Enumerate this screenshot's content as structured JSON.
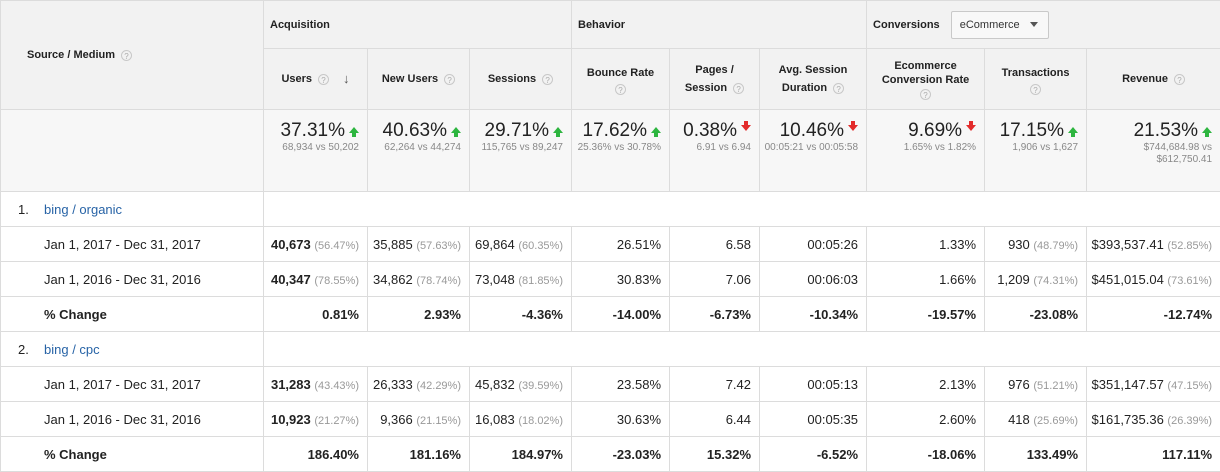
{
  "header": {
    "source_medium": "Source / Medium",
    "groups": {
      "acquisition": "Acquisition",
      "behavior": "Behavior",
      "conversions": "Conversions"
    },
    "conversion_select": "eCommerce",
    "columns": {
      "users": "Users",
      "new_users": "New Users",
      "sessions": "Sessions",
      "bounce_rate": "Bounce Rate",
      "pages_session_1": "Pages /",
      "pages_session_2": "Session",
      "avg_dur_1": "Avg. Session",
      "avg_dur_2": "Duration",
      "ecom_1": "Ecommerce",
      "ecom_2": "Conversion Rate",
      "transactions": "Transactions",
      "revenue": "Revenue"
    },
    "help_glyph": "?",
    "sort_glyph": "↓"
  },
  "summary": [
    {
      "value": "37.31%",
      "trend": "up",
      "compare": "68,934 vs 50,202"
    },
    {
      "value": "40.63%",
      "trend": "up",
      "compare": "62,264 vs 44,274"
    },
    {
      "value": "29.71%",
      "trend": "up",
      "compare": "115,765 vs 89,247"
    },
    {
      "value": "17.62%",
      "trend": "up",
      "compare": "25.36% vs 30.78%"
    },
    {
      "value": "0.38%",
      "trend": "down",
      "compare": "6.91 vs 6.94"
    },
    {
      "value": "10.46%",
      "trend": "down",
      "compare": "00:05:21 vs 00:05:58"
    },
    {
      "value": "9.69%",
      "trend": "down",
      "compare": "1.65% vs 1.82%"
    },
    {
      "value": "17.15%",
      "trend": "up",
      "compare": "1,906 vs 1,627"
    },
    {
      "value": "21.53%",
      "trend": "up",
      "compare": "$744,684.98 vs $612,750.41"
    }
  ],
  "sources": [
    {
      "index": "1.",
      "name": "bing / organic",
      "rows": [
        {
          "label": "Jan 1, 2017 - Dec 31, 2017",
          "users": "40,673",
          "users_pct": "(56.47%)",
          "new_users": "35,885",
          "new_users_pct": "(57.63%)",
          "sessions": "69,864",
          "sessions_pct": "(60.35%)",
          "bounce": "26.51%",
          "pages": "6.58",
          "duration": "00:05:26",
          "ecom": "1.33%",
          "transactions": "930",
          "transactions_pct": "(48.79%)",
          "revenue": "$393,537.41",
          "revenue_pct": "(52.85%)"
        },
        {
          "label": "Jan 1, 2016 - Dec 31, 2016",
          "users": "40,347",
          "users_pct": "(78.55%)",
          "new_users": "34,862",
          "new_users_pct": "(78.74%)",
          "sessions": "73,048",
          "sessions_pct": "(81.85%)",
          "bounce": "30.83%",
          "pages": "7.06",
          "duration": "00:06:03",
          "ecom": "1.66%",
          "transactions": "1,209",
          "transactions_pct": "(74.31%)",
          "revenue": "$451,015.04",
          "revenue_pct": "(73.61%)"
        }
      ],
      "change": {
        "label": "% Change",
        "users": "0.81%",
        "new_users": "2.93%",
        "sessions": "-4.36%",
        "bounce": "-14.00%",
        "pages": "-6.73%",
        "duration": "-10.34%",
        "ecom": "-19.57%",
        "transactions": "-23.08%",
        "revenue": "-12.74%"
      }
    },
    {
      "index": "2.",
      "name": "bing / cpc",
      "rows": [
        {
          "label": "Jan 1, 2017 - Dec 31, 2017",
          "users": "31,283",
          "users_pct": "(43.43%)",
          "new_users": "26,333",
          "new_users_pct": "(42.29%)",
          "sessions": "45,832",
          "sessions_pct": "(39.59%)",
          "bounce": "23.58%",
          "pages": "7.42",
          "duration": "00:05:13",
          "ecom": "2.13%",
          "transactions": "976",
          "transactions_pct": "(51.21%)",
          "revenue": "$351,147.57",
          "revenue_pct": "(47.15%)"
        },
        {
          "label": "Jan 1, 2016 - Dec 31, 2016",
          "users": "10,923",
          "users_pct": "(21.27%)",
          "new_users": "9,366",
          "new_users_pct": "(21.15%)",
          "sessions": "16,083",
          "sessions_pct": "(18.02%)",
          "bounce": "30.63%",
          "pages": "6.44",
          "duration": "00:05:35",
          "ecom": "2.60%",
          "transactions": "418",
          "transactions_pct": "(25.69%)",
          "revenue": "$161,735.36",
          "revenue_pct": "(26.39%)"
        }
      ],
      "change": {
        "label": "% Change",
        "users": "186.40%",
        "new_users": "181.16%",
        "sessions": "184.97%",
        "bounce": "-23.03%",
        "pages": "15.32%",
        "duration": "-6.52%",
        "ecom": "-18.06%",
        "transactions": "133.49%",
        "revenue": "117.11%"
      }
    }
  ],
  "colors": {
    "up": "#2db53f",
    "down": "#e32b2b",
    "link": "#2763a6",
    "header_bg": "#f2f2f2"
  },
  "icons": {
    "trend_up": "green-up-arrow-icon",
    "trend_down": "red-down-arrow-icon",
    "help": "help-circle-icon",
    "sort": "sort-descending-icon"
  }
}
